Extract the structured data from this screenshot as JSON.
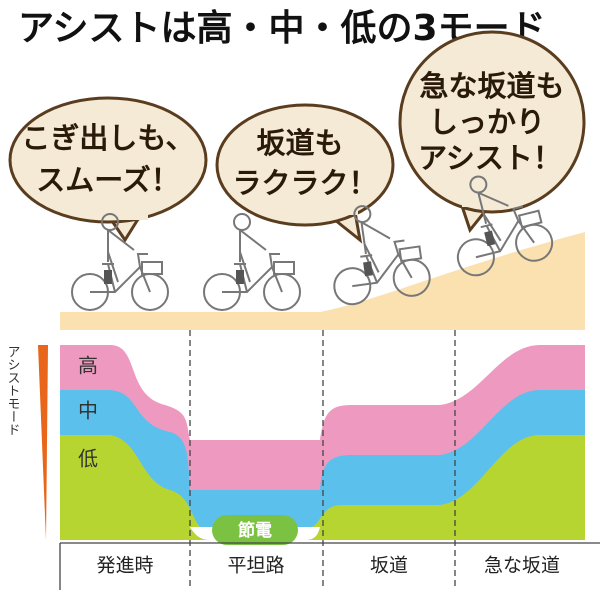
{
  "title": "アシストは高・中・低の3モード",
  "bubbles": [
    {
      "lines": [
        "こぎ出しも、",
        "スムーズ！"
      ]
    },
    {
      "lines": [
        "坂道も",
        "ラクラク！"
      ]
    },
    {
      "lines": [
        "急な坂道も",
        "しっかり",
        "アシスト！"
      ]
    }
  ],
  "axis_label": "アシストモード",
  "modes": [
    "高",
    "中",
    "低"
  ],
  "saving_label": "節電",
  "sections": [
    "発進時",
    "平坦路",
    "坂道",
    "急な坂道"
  ]
}
